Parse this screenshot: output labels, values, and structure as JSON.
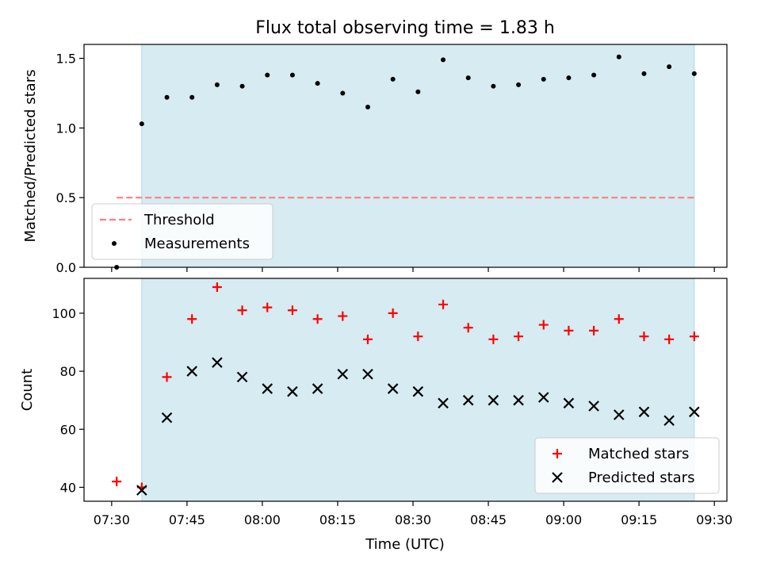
{
  "chart_data": {
    "type": "scatter",
    "title": "Flux total observing time = 1.83 h",
    "xlabel": "Time (UTC)",
    "x_ticks": [
      "07:30",
      "07:45",
      "08:00",
      "08:15",
      "08:30",
      "08:45",
      "09:00",
      "09:15",
      "09:30"
    ],
    "x_tick_minutes": [
      450,
      465,
      480,
      495,
      510,
      525,
      540,
      555,
      570
    ],
    "xlim_minutes": [
      444.5,
      572.5
    ],
    "x_minutes": [
      451,
      456,
      461,
      466,
      471,
      476,
      481,
      486,
      491,
      496,
      501,
      506,
      511,
      516,
      521,
      526,
      531,
      536,
      541,
      546,
      551,
      556,
      561,
      566
    ],
    "shaded_region_minutes": [
      456,
      566
    ],
    "shaded_color": "#add8e6",
    "panels": [
      {
        "ylabel": "Matched/Predicted stars",
        "ylim": [
          0,
          1.6
        ],
        "y_ticks": [
          0.0,
          0.5,
          1.0,
          1.5
        ],
        "y_tick_labels": [
          "0.0",
          "0.5",
          "1.0",
          "1.5"
        ],
        "legend_position": "lower-left",
        "threshold": {
          "name": "Threshold",
          "value": 0.5,
          "x_range_minutes": [
            451,
            566
          ],
          "color": "#ff7f7f",
          "style": "dashed"
        },
        "series": [
          {
            "name": "Measurements",
            "marker": "dot",
            "color": "#000000",
            "values": [
              0.0,
              1.03,
              1.22,
              1.22,
              1.31,
              1.3,
              1.38,
              1.38,
              1.32,
              1.25,
              1.15,
              1.35,
              1.26,
              1.49,
              1.36,
              1.3,
              1.31,
              1.35,
              1.36,
              1.38,
              1.51,
              1.39,
              1.44,
              1.39
            ]
          }
        ]
      },
      {
        "ylabel": "Count",
        "ylim": [
          35.2,
          112
        ],
        "y_ticks": [
          40,
          60,
          80,
          100
        ],
        "y_tick_labels": [
          "40",
          "60",
          "80",
          "100"
        ],
        "legend_position": "lower-right",
        "series": [
          {
            "name": "Matched stars",
            "marker": "plus",
            "color": "#ff0000",
            "values": [
              42,
              40,
              78,
              98,
              109,
              101,
              102,
              101,
              98,
              99,
              91,
              100,
              92,
              103,
              95,
              91,
              92,
              96,
              94,
              94,
              98,
              92,
              91,
              92
            ]
          },
          {
            "name": "Predicted stars",
            "marker": "x",
            "color": "#000000",
            "values": [
              null,
              39,
              64,
              80,
              83,
              78,
              74,
              73,
              74,
              79,
              79,
              74,
              73,
              69,
              70,
              70,
              70,
              71,
              69,
              68,
              65,
              66,
              63,
              66
            ]
          }
        ]
      }
    ]
  }
}
